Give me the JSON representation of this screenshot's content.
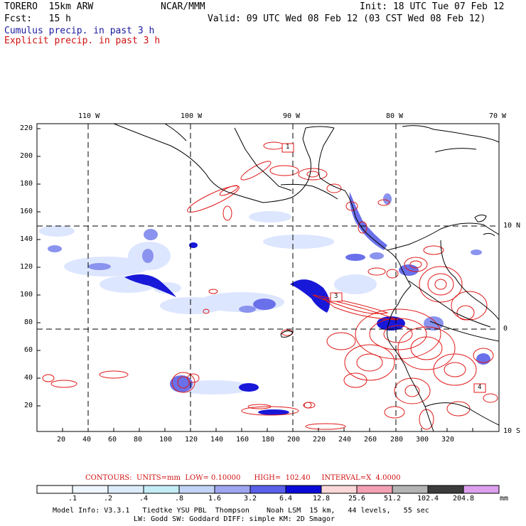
{
  "header": {
    "model": "TORERO  15km ARW",
    "org": "NCAR/MMM",
    "init": "Init: 18 UTC Tue 07 Feb 12",
    "fcst": "Fcst:   15 h",
    "valid": "Valid: 09 UTC Wed 08 Feb 12 (03 CST Wed 08 Feb 12)",
    "legend_cumulus": "Cumulus precip. in past 3 h",
    "legend_explicit": "Explicit precip. in past 3 h"
  },
  "map": {
    "lon_labels": [
      "110 W",
      "100 W",
      "90 W",
      "80 W",
      "70 W"
    ],
    "lat_labels": [
      "10 N",
      "0",
      "10 S"
    ],
    "x_ticks": [
      "20",
      "40",
      "60",
      "80",
      "100",
      "120",
      "140",
      "160",
      "180",
      "200",
      "220",
      "240",
      "260",
      "280",
      "300",
      "320"
    ],
    "y_ticks": [
      "220",
      "200",
      "180",
      "160",
      "140",
      "120",
      "100",
      "80",
      "60",
      "40",
      "20"
    ],
    "box_labels": [
      "1",
      "3",
      "4"
    ],
    "colors": {
      "coast": "#000000",
      "explicit": "#e01818",
      "cumulus_light": "#dde6ff",
      "cumulus_mid": "#8a93ee",
      "cumulus_dark": "#1818d8"
    }
  },
  "contours": {
    "text": "CONTOURS:  UNITS=mm  LOW= 0.10000      HIGH=  102.40     INTERVAL=X  4.0000"
  },
  "colorbar": {
    "labels": [
      ".1",
      ".2",
      ".4",
      ".8",
      "1.6",
      "3.2",
      "6.4",
      "12.8",
      "25.6",
      "51.2",
      "102.4",
      "204.8",
      "mm"
    ],
    "colors": [
      "#ffffff",
      "#eef6ff",
      "#dcecfa",
      "#c4ecf6",
      "#c2d4f6",
      "#9ea6f0",
      "#5a60ea",
      "#0a0ad8",
      "#fbd8d8",
      "#f4a0b4",
      "#b4b4b4",
      "#3c3c3c",
      "#dca0ee"
    ]
  },
  "footer": {
    "line1": "Model Info: V3.3.1   Tiedtke YSU PBL  Thompson    Noah LSM  15 km,   44 levels,   55 sec",
    "line2": "LW: Godd SW: Goddard DIFF: simple KM: 2D Smagor"
  }
}
